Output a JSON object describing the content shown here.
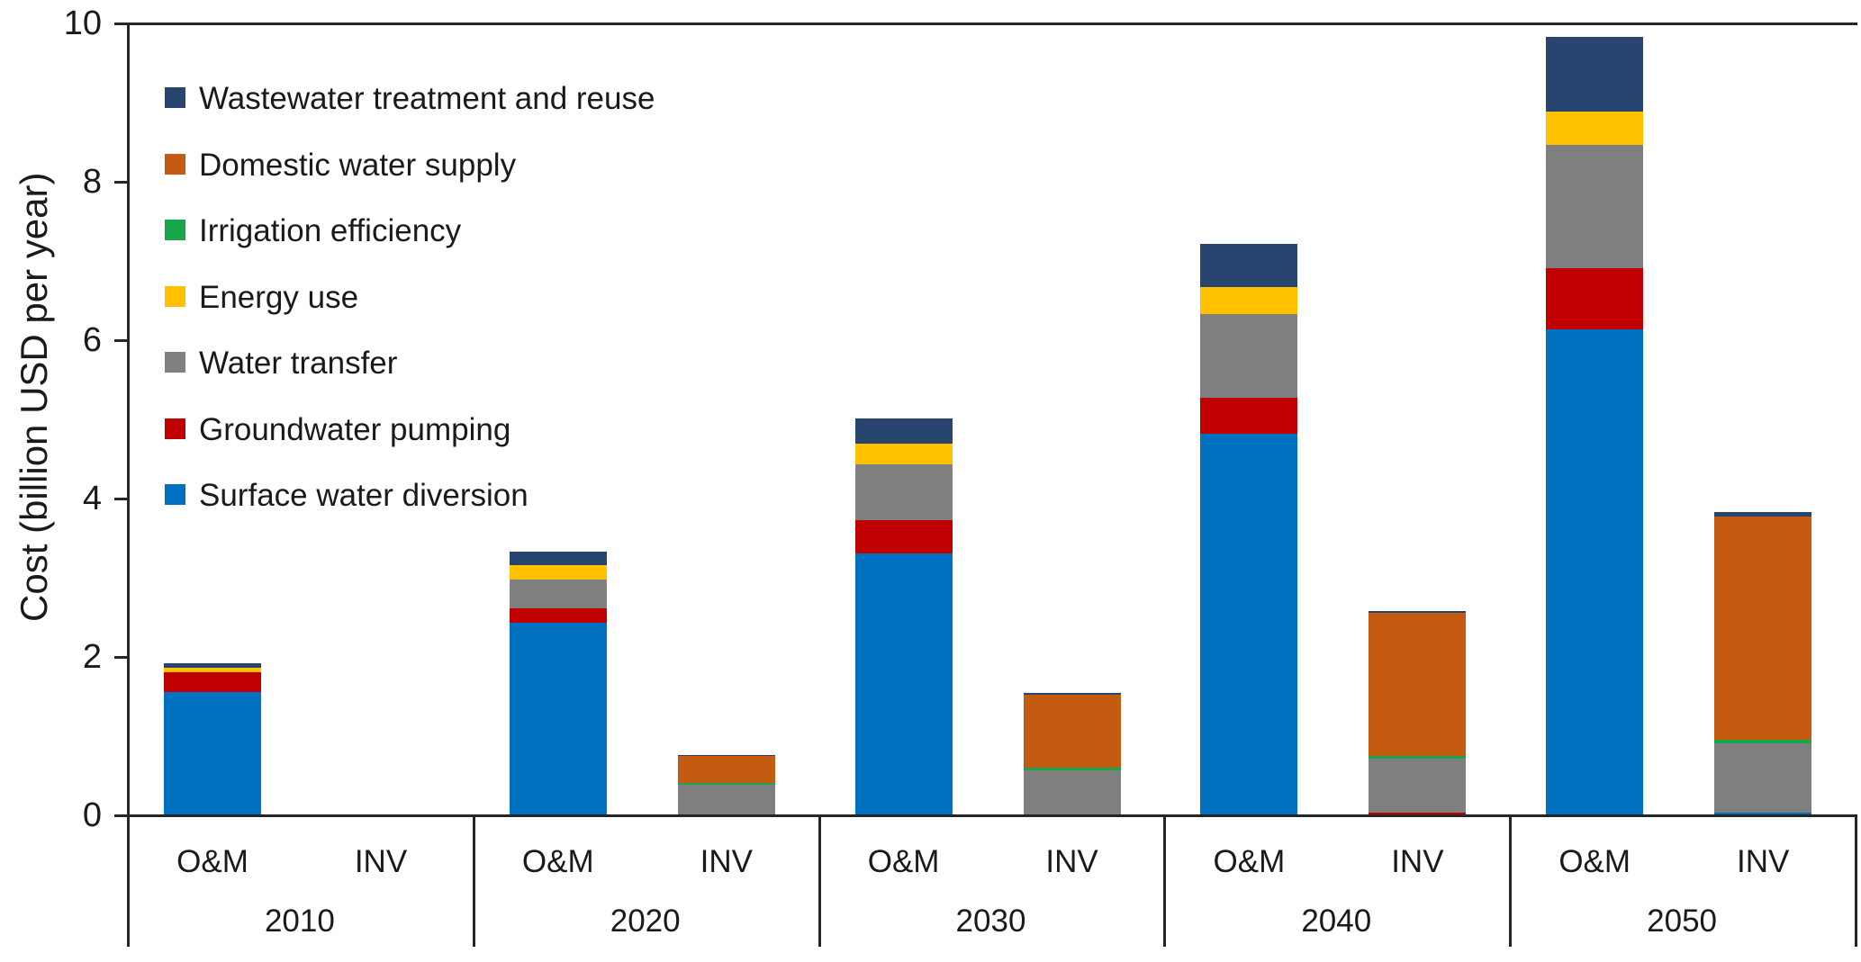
{
  "y_axis": {
    "title": "Cost (billion USD per year)",
    "ticks": [
      "0",
      "2",
      "4",
      "6",
      "8",
      "10"
    ],
    "tick_values": [
      0,
      2,
      4,
      6,
      8,
      10
    ],
    "max": 10
  },
  "x_axis": {
    "years": [
      "2010",
      "2020",
      "2030",
      "2040",
      "2050"
    ],
    "bar_labels": [
      "O&M",
      "INV"
    ]
  },
  "legend": [
    {
      "label": "Wastewater treatment and reuse",
      "color": "#28456F"
    },
    {
      "label": "Domestic water supply",
      "color": "#C55A11"
    },
    {
      "label": "Irrigation efficiency",
      "color": "#18A64B"
    },
    {
      "label": "Energy use",
      "color": "#FFC000"
    },
    {
      "label": "Water transfer",
      "color": "#7F7F7F"
    },
    {
      "label": "Groundwater pumping",
      "color": "#C00000"
    },
    {
      "label": "Surface water diversion",
      "color": "#0070C0"
    }
  ],
  "chart_data": {
    "type": "bar",
    "stacked": true,
    "title": "",
    "xlabel": "",
    "ylabel": "Cost (billion USD per year)",
    "ylim": [
      0,
      10
    ],
    "grid": false,
    "legend_position": "upper-left",
    "categories": [
      "2010 O&M",
      "2010 INV",
      "2020 O&M",
      "2020 INV",
      "2030 O&M",
      "2030 INV",
      "2040 O&M",
      "2040 INV",
      "2050 O&M",
      "2050 INV"
    ],
    "series": [
      {
        "name": "Surface water diversion",
        "color": "#0070C0",
        "values": [
          1.55,
          0,
          2.42,
          0,
          3.3,
          0,
          4.81,
          0,
          6.13,
          0.02
        ]
      },
      {
        "name": "Groundwater pumping",
        "color": "#C00000",
        "values": [
          0.25,
          0,
          0.18,
          0,
          0.42,
          0,
          0.45,
          0.02,
          0.77,
          0
        ]
      },
      {
        "name": "Water transfer",
        "color": "#7F7F7F",
        "values": [
          0,
          0,
          0.37,
          0.38,
          0.7,
          0.56,
          1.06,
          0.69,
          1.55,
          0.88
        ]
      },
      {
        "name": "Energy use",
        "color": "#FFC000",
        "values": [
          0.05,
          0,
          0.18,
          0,
          0.26,
          0,
          0.34,
          0,
          0.42,
          0
        ]
      },
      {
        "name": "Irrigation efficiency",
        "color": "#18A64B",
        "values": [
          0,
          0,
          0,
          0.02,
          0,
          0.03,
          0,
          0.03,
          0,
          0.04
        ]
      },
      {
        "name": "Domestic water supply",
        "color": "#C55A11",
        "values": [
          0,
          0,
          0,
          0.34,
          0,
          0.92,
          0,
          1.8,
          0,
          2.82
        ]
      },
      {
        "name": "Wastewater treatment and reuse",
        "color": "#28456F",
        "values": [
          0.06,
          0,
          0.17,
          0.01,
          0.32,
          0.02,
          0.54,
          0.03,
          0.95,
          0.06
        ]
      }
    ]
  }
}
